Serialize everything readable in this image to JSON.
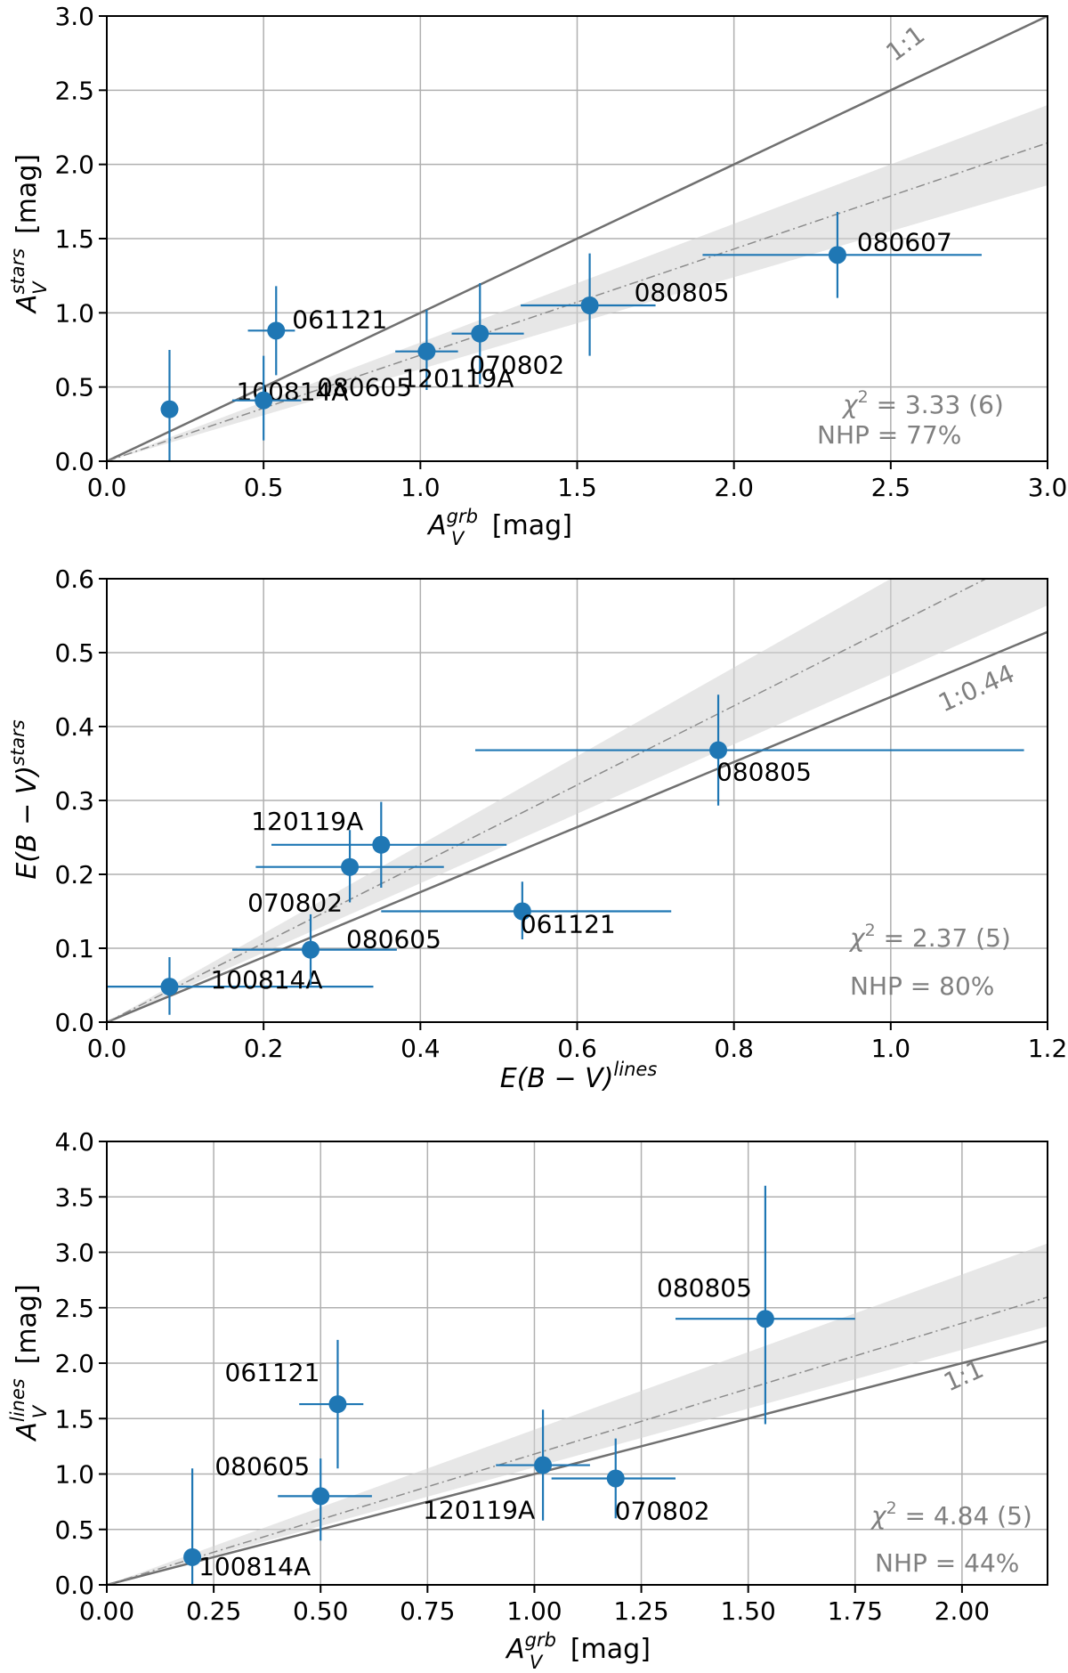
{
  "colors": {
    "marker": "#1f77b4",
    "refLine": "#707070",
    "fitLine": "#8c8c8c",
    "band": "#d3d3d3",
    "grid": "#b0b0b0"
  },
  "chart_data": [
    {
      "id": "p1",
      "type": "scatter",
      "xlim": [
        0,
        3.0
      ],
      "ylim": [
        0,
        3.0
      ],
      "xticks": [
        "0.0",
        "0.5",
        "1.0",
        "1.5",
        "2.0",
        "2.5",
        "3.0"
      ],
      "yticks": [
        "0.0",
        "0.5",
        "1.0",
        "1.5",
        "2.0",
        "2.5",
        "3.0"
      ],
      "xlabel_main": "A",
      "xlabel_sub": "V",
      "xlabel_sup": "grb",
      "xlabel_unit": " [mag]",
      "ylabel_main": "A",
      "ylabel_sub": "V",
      "ylabel_sup": "stars",
      "ylabel_unit": " [mag]",
      "ref_line": {
        "label": "1:1",
        "slope": 1.0
      },
      "fit": {
        "slope": 0.715,
        "band_lo": 0.62,
        "band_hi": 0.8
      },
      "stats": {
        "chi2_text": " = 3.33 (6)",
        "nhp_text": "NHP = 77%"
      },
      "points": [
        {
          "name": "100814A",
          "x": 0.2,
          "y": 0.35,
          "xerr": [
            0.0,
            0.0
          ],
          "yerr": [
            0.35,
            0.4
          ]
        },
        {
          "name": "080605",
          "x": 0.5,
          "y": 0.41,
          "xerr": [
            0.1,
            0.12
          ],
          "yerr": [
            0.27,
            0.3
          ]
        },
        {
          "name": "061121",
          "x": 0.54,
          "y": 0.88,
          "xerr": [
            0.09,
            0.06
          ],
          "yerr": [
            0.3,
            0.3
          ]
        },
        {
          "name": "120119A",
          "x": 1.02,
          "y": 0.74,
          "xerr": [
            0.1,
            0.1
          ],
          "yerr": [
            0.26,
            0.28
          ]
        },
        {
          "name": "070802",
          "x": 1.19,
          "y": 0.86,
          "xerr": [
            0.09,
            0.14
          ],
          "yerr": [
            0.34,
            0.34
          ]
        },
        {
          "name": "080805",
          "x": 1.54,
          "y": 1.05,
          "xerr": [
            0.22,
            0.21
          ],
          "yerr": [
            0.34,
            0.35
          ]
        },
        {
          "name": "080607",
          "x": 2.33,
          "y": 1.39,
          "xerr": [
            0.43,
            0.46
          ],
          "yerr": [
            0.29,
            0.29
          ]
        }
      ]
    },
    {
      "id": "p2",
      "type": "scatter",
      "xlim": [
        0,
        1.2
      ],
      "ylim": [
        0,
        0.6
      ],
      "xticks": [
        "0.0",
        "0.2",
        "0.4",
        "0.6",
        "0.8",
        "1.0",
        "1.2"
      ],
      "yticks": [
        "0.0",
        "0.1",
        "0.2",
        "0.3",
        "0.4",
        "0.5",
        "0.6"
      ],
      "xlabel_main": "E(B − V)",
      "xlabel_sup": "lines",
      "ylabel_main": "E(B − V)",
      "ylabel_sup": "stars",
      "ref_line": {
        "label": "1:0.44",
        "slope": 0.44
      },
      "fit": {
        "slope": 0.535,
        "band_lo": 0.47,
        "band_hi": 0.6
      },
      "stats": {
        "chi2_text": " = 2.37 (5)",
        "nhp_text": "NHP = 80%"
      },
      "points": [
        {
          "name": "100814A",
          "x": 0.08,
          "y": 0.048,
          "xerr": [
            0.08,
            0.26
          ],
          "yerr": [
            0.038,
            0.04
          ]
        },
        {
          "name": "080605",
          "x": 0.26,
          "y": 0.098,
          "xerr": [
            0.1,
            0.11
          ],
          "yerr": [
            0.048,
            0.048
          ]
        },
        {
          "name": "070802",
          "x": 0.31,
          "y": 0.21,
          "xerr": [
            0.12,
            0.12
          ],
          "yerr": [
            0.048,
            0.05
          ]
        },
        {
          "name": "120119A",
          "x": 0.35,
          "y": 0.24,
          "xerr": [
            0.14,
            0.16
          ],
          "yerr": [
            0.058,
            0.058
          ]
        },
        {
          "name": "061121",
          "x": 0.53,
          "y": 0.15,
          "xerr": [
            0.18,
            0.19
          ],
          "yerr": [
            0.038,
            0.04
          ]
        },
        {
          "name": "080805",
          "x": 0.78,
          "y": 0.368,
          "xerr": [
            0.31,
            0.39
          ],
          "yerr": [
            0.075,
            0.075
          ]
        }
      ]
    },
    {
      "id": "p3",
      "type": "scatter",
      "xlim": [
        0,
        2.2
      ],
      "ylim": [
        0,
        4.0
      ],
      "xticks": [
        "0.00",
        "0.25",
        "0.50",
        "0.75",
        "1.00",
        "1.25",
        "1.50",
        "1.75",
        "2.00"
      ],
      "yticks": [
        "0.0",
        "0.5",
        "1.0",
        "1.5",
        "2.0",
        "2.5",
        "3.0",
        "3.5",
        "4.0"
      ],
      "xlabel_main": "A",
      "xlabel_sub": "V",
      "xlabel_sup": "grb",
      "xlabel_unit": " [mag]",
      "ylabel_main": "A",
      "ylabel_sub": "V",
      "ylabel_sup": "lines",
      "ylabel_unit": " [mag]",
      "ref_line": {
        "label": "1:1",
        "slope": 1.0
      },
      "fit": {
        "slope": 1.18,
        "band_lo": 1.06,
        "band_hi": 1.4
      },
      "stats": {
        "chi2_text": " = 4.84 (5)",
        "nhp_text": "NHP = 44%"
      },
      "points": [
        {
          "name": "100814A",
          "x": 0.2,
          "y": 0.25,
          "xerr": [
            0.0,
            0.0
          ],
          "yerr": [
            0.25,
            0.8
          ]
        },
        {
          "name": "080605",
          "x": 0.5,
          "y": 0.8,
          "xerr": [
            0.1,
            0.12
          ],
          "yerr": [
            0.4,
            0.34
          ]
        },
        {
          "name": "061121",
          "x": 0.54,
          "y": 1.63,
          "xerr": [
            0.09,
            0.06
          ],
          "yerr": [
            0.58,
            0.58
          ]
        },
        {
          "name": "120119A",
          "x": 1.02,
          "y": 1.08,
          "xerr": [
            0.11,
            0.11
          ],
          "yerr": [
            0.5,
            0.5
          ]
        },
        {
          "name": "070802",
          "x": 1.19,
          "y": 0.96,
          "xerr": [
            0.15,
            0.14
          ],
          "yerr": [
            0.36,
            0.36
          ]
        },
        {
          "name": "080805",
          "x": 1.54,
          "y": 2.4,
          "xerr": [
            0.21,
            0.21
          ],
          "yerr": [
            0.95,
            1.2
          ]
        }
      ]
    }
  ]
}
